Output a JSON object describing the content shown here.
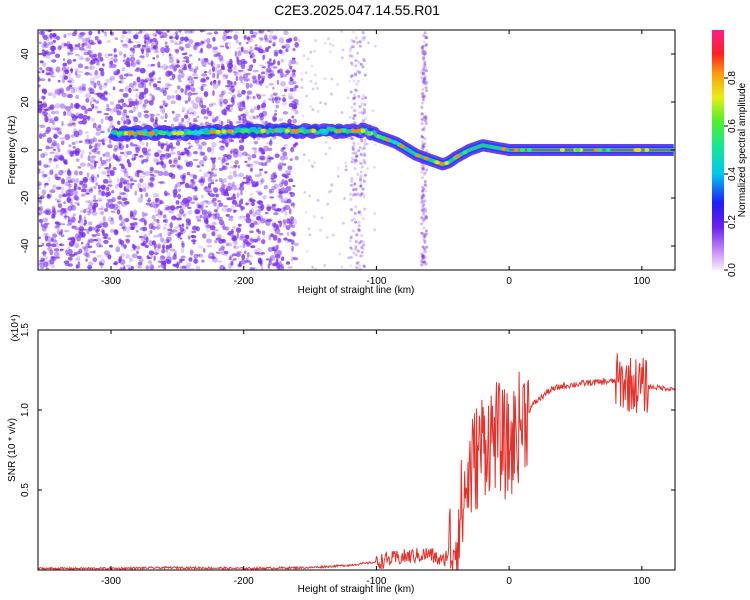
{
  "title": "C2E3.2025.047.14.55.R01",
  "colors": {
    "snr_line": "#e8302a",
    "spectrogram_noise": "#7a2cf0",
    "ridge": "#2ad16a"
  },
  "chart_data": [
    {
      "type": "heatmap",
      "name": "spectrogram",
      "xlabel": "Height of straight line (km)",
      "ylabel": "Frequency (Hz)",
      "xlim": [
        -355,
        125
      ],
      "ylim": [
        -50,
        50
      ],
      "x_ticks": [
        -300,
        -200,
        -100,
        0,
        100
      ],
      "x_tick_labels": [
        "-300",
        "-200",
        "-100",
        "0",
        "100"
      ],
      "y_ticks": [
        -40,
        -20,
        0,
        20,
        40
      ],
      "y_tick_labels": [
        "-40",
        "-20",
        "0",
        "20",
        "40"
      ],
      "colorbar": {
        "label": "Normalized spectral amplitude",
        "range": [
          0,
          1
        ],
        "ticks": [
          0.0,
          0.2,
          0.4,
          0.6,
          0.8
        ],
        "tick_labels": [
          "0.0",
          "0.2",
          "0.4",
          "0.6",
          "0.8"
        ]
      },
      "ridge_centerline": {
        "x": [
          -300,
          -250,
          -200,
          -160,
          -130,
          -110,
          -100,
          -85,
          -70,
          -60,
          -50,
          -45,
          -40,
          -30,
          -20,
          -10,
          0,
          50,
          100,
          125
        ],
        "y": [
          7,
          7,
          8,
          8,
          8,
          8,
          6,
          3,
          -2,
          -4,
          -6,
          -5,
          -3,
          0,
          2,
          1,
          0,
          0,
          0,
          0
        ]
      }
    },
    {
      "type": "line",
      "name": "snr",
      "xlabel": "Height of straight line (km)",
      "ylabel": "SNR (10 * v/v)",
      "y_multiplier": "(x10⁴)",
      "xlim": [
        -355,
        125
      ],
      "ylim": [
        0,
        1.5
      ],
      "x_ticks": [
        -300,
        -200,
        -100,
        0,
        100
      ],
      "x_tick_labels": [
        "-300",
        "-200",
        "-100",
        "0",
        "100"
      ],
      "y_ticks": [
        0.5,
        1.0,
        1.5
      ],
      "y_tick_labels": [
        "0.5",
        "1.0",
        "1.5"
      ],
      "series": [
        {
          "x": [
            -355,
            -300,
            -250,
            -200,
            -150,
            -120,
            -100,
            -80,
            -60,
            -50,
            -40,
            -30,
            -20,
            -10,
            0,
            10,
            20,
            30,
            40,
            60,
            80,
            100,
            125
          ],
          "y": [
            0.01,
            0.01,
            0.015,
            0.01,
            0.015,
            0.03,
            0.05,
            0.08,
            0.1,
            0.05,
            0.2,
            0.6,
            0.8,
            0.85,
            0.75,
            0.95,
            1.05,
            1.12,
            1.15,
            1.17,
            1.18,
            1.15,
            1.13
          ]
        }
      ]
    }
  ]
}
